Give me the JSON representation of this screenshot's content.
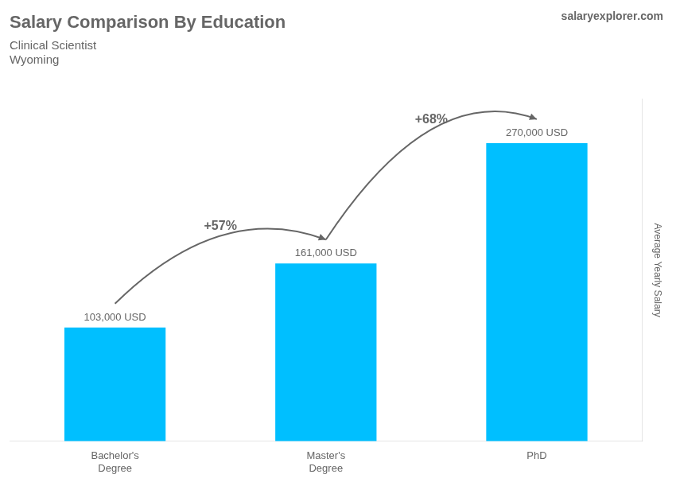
{
  "chart_data": {
    "type": "bar",
    "title": "Salary Comparison By Education",
    "subtitle": "Clinical Scientist",
    "location": "Wyoming",
    "site_text": [
      "salary",
      "explorer",
      ".com"
    ],
    "ylabel": "Average Yearly Salary",
    "categories": [
      "Bachelor's\nDegree",
      "Master's\nDegree",
      "PhD"
    ],
    "values": [
      103000,
      161000,
      270000
    ],
    "value_labels": [
      "103,000 USD",
      "161,000 USD",
      "270,000 USD"
    ],
    "data_labels": true,
    "annotations": [
      "+57%",
      "+68%"
    ],
    "color": "#00BFFF",
    "ylim": [
      0,
      310000
    ],
    "grid": false,
    "tick_labels": "x"
  }
}
